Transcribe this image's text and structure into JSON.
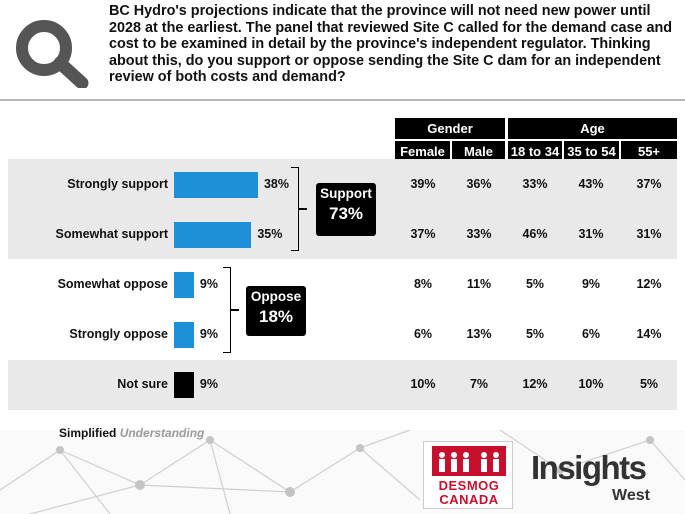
{
  "question": "BC Hydro's projections indicate that the province will not need new power until 2028 at the earliest. The panel that reviewed Site C called for the demand case and cost to be examined in detail by the province's independent regulator. Thinking about this, do you support or oppose sending the Site C dam for an independent review of both costs and demand?",
  "groups": {
    "gender": "Gender",
    "age": "Age"
  },
  "columns": [
    "Female",
    "Male",
    "18 to 34",
    "35 to 54",
    "55+"
  ],
  "summaries": [
    {
      "label": "Support",
      "value": "73%"
    },
    {
      "label": "Oppose",
      "value": "18%"
    }
  ],
  "footer": {
    "simplified": "Simplified",
    "understanding": "Understanding"
  },
  "logos": {
    "desmog_line1": "DESMOG",
    "desmog_line2": "CANADA",
    "insights": "Insights",
    "west": "West"
  },
  "colors": {
    "bar": "#1e90d8",
    "not_sure_bar": "#000000",
    "header_fill": "#000000",
    "band": "#e9e9e9"
  },
  "chart_data": {
    "type": "bar",
    "orientation": "horizontal",
    "title": "",
    "xlabel": "",
    "ylabel": "",
    "xlim": [
      0,
      40
    ],
    "categories": [
      "Strongly support",
      "Somewhat support",
      "Somewhat oppose",
      "Strongly oppose",
      "Not sure"
    ],
    "values": [
      38,
      35,
      9,
      9,
      9
    ],
    "value_labels": [
      "38%",
      "35%",
      "9%",
      "9%",
      "9%"
    ],
    "breakdown": {
      "columns": [
        "Female",
        "Male",
        "18 to 34",
        "35 to 54",
        "55+"
      ],
      "rows": [
        [
          "39%",
          "36%",
          "33%",
          "43%",
          "37%"
        ],
        [
          "37%",
          "33%",
          "46%",
          "31%",
          "31%"
        ],
        [
          "8%",
          "11%",
          "5%",
          "9%",
          "12%"
        ],
        [
          "6%",
          "13%",
          "5%",
          "6%",
          "14%"
        ],
        [
          "10%",
          "7%",
          "12%",
          "10%",
          "5%"
        ]
      ]
    }
  }
}
